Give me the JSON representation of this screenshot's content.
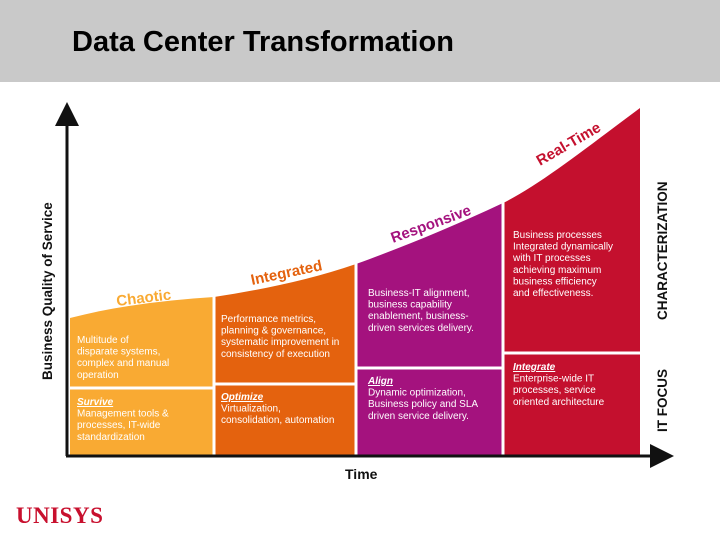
{
  "slide": {
    "title": "Data Center Transformation",
    "logo_text": "UNISYS"
  },
  "axes": {
    "y_label": "Business Quality of Service",
    "x_label": "Time"
  },
  "side_labels": {
    "top": "CHARACTERIZATION",
    "bottom": "IT FOCUS"
  },
  "stages": [
    {
      "name": "Chaotic",
      "color": "#f9aa33",
      "characterization": [
        "Multitude of",
        "disparate systems,",
        "complex and manual",
        "operation"
      ],
      "focus_title": "Survive",
      "focus_text": [
        "Management tools &",
        "processes, IT-wide",
        "standardization"
      ]
    },
    {
      "name": "Integrated",
      "color": "#e4620e",
      "characterization": [
        "Performance metrics,",
        "planning & governance,",
        "systematic improvement in",
        "consistency of execution"
      ],
      "focus_title": "Optimize",
      "focus_text": [
        "Virtualization,",
        "consolidation, automation"
      ]
    },
    {
      "name": "Responsive",
      "color": "#a4127e",
      "characterization": [
        "Business-IT alignment,",
        "business capability",
        "enablement, business-",
        "driven services delivery."
      ],
      "focus_title": "Align",
      "focus_text": [
        "Dynamic optimization,",
        "Business policy and SLA",
        "driven service delivery."
      ]
    },
    {
      "name": "Real-Time",
      "color": "#c4102e",
      "characterization": [
        "Business processes",
        "Integrated dynamically",
        "with IT processes",
        "achieving maximum",
        "business efficiency",
        "and effectiveness."
      ],
      "focus_title": "Integrate",
      "focus_text": [
        "Enterprise-wide IT",
        "processes, service",
        "oriented architecture"
      ]
    }
  ]
}
